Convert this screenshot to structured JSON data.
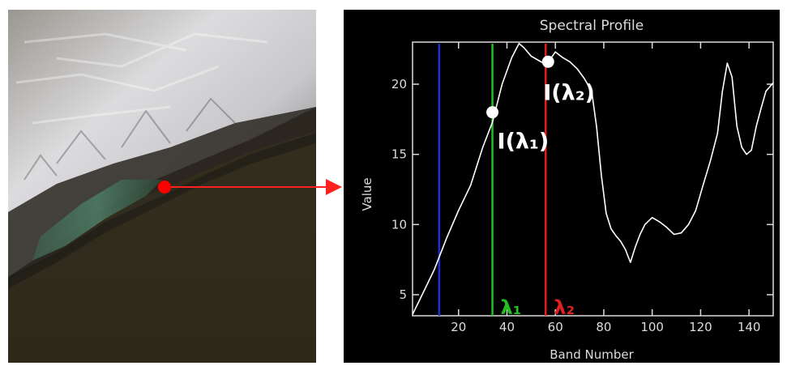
{
  "image": {
    "marker_color": "#ff0000",
    "arrow_color": "#ff2020"
  },
  "chart_data": {
    "type": "line",
    "title": "Spectral Profile",
    "xlabel": "Band Number",
    "ylabel": "Value",
    "xlim": [
      1,
      150
    ],
    "ylim": [
      3.5,
      23
    ],
    "x_ticks": [
      20,
      40,
      60,
      80,
      100,
      120,
      140
    ],
    "y_ticks": [
      5,
      10,
      15,
      20
    ],
    "series": [
      {
        "color": "#ffffff",
        "x": [
          1,
          5,
          10,
          15,
          20,
          25,
          30,
          34,
          38,
          42,
          45,
          47,
          50,
          53,
          56,
          58,
          60,
          63,
          66,
          69,
          72,
          75,
          77,
          79,
          81,
          83,
          85,
          87,
          89,
          91,
          93,
          95,
          97,
          100,
          103,
          106,
          109,
          112,
          115,
          118,
          121,
          124,
          127,
          129,
          131,
          133,
          135,
          137,
          139,
          141,
          143,
          145,
          147,
          150
        ],
        "y": [
          3.6,
          5.0,
          6.8,
          9.0,
          11.0,
          12.8,
          15.5,
          17.3,
          20.0,
          21.9,
          22.9,
          22.6,
          22.0,
          21.7,
          21.4,
          21.8,
          22.3,
          21.9,
          21.6,
          21.1,
          20.4,
          19.5,
          17.0,
          13.5,
          10.8,
          9.7,
          9.2,
          8.8,
          8.2,
          7.3,
          8.4,
          9.3,
          10.0,
          10.5,
          10.2,
          9.8,
          9.3,
          9.4,
          10.0,
          11.0,
          12.8,
          14.5,
          16.5,
          19.5,
          21.5,
          20.5,
          17.0,
          15.5,
          15.0,
          15.3,
          17.0,
          18.3,
          19.5,
          20.1
        ]
      }
    ],
    "lines": [
      {
        "label": "",
        "color": "#1c2fd0",
        "x": 12
      },
      {
        "label": "λ₁",
        "color": "#22c022",
        "x": 34
      },
      {
        "label": "λ₂",
        "color": "#e02020",
        "x": 56
      }
    ],
    "points": [
      {
        "label": "I(λ₁)",
        "x": 34,
        "y": 18.0
      },
      {
        "label": "I(λ₂)",
        "x": 57,
        "y": 21.6
      }
    ]
  }
}
